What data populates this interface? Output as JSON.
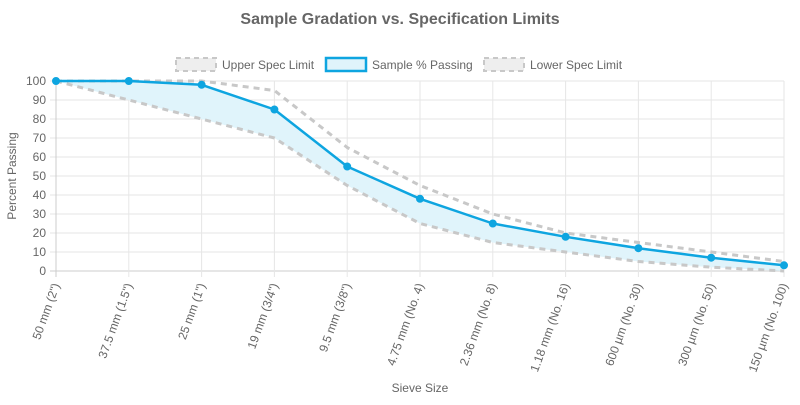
{
  "chart_data": {
    "type": "line",
    "title": "Sample Gradation vs. Specification Limits",
    "xlabel": "Sieve Size",
    "ylabel": "Percent Passing",
    "ylim": [
      0,
      100
    ],
    "yticks": [
      0,
      10,
      20,
      30,
      40,
      50,
      60,
      70,
      80,
      90,
      100
    ],
    "grid": true,
    "legend_position": "top",
    "categories": [
      "50 mm (2\")",
      "37.5 mm (1.5\")",
      "25 mm (1\")",
      "19 mm (3/4\")",
      "9.5 mm (3/8\")",
      "4.75 mm (No. 4)",
      "2.36 mm (No. 8)",
      "1.18 mm (No. 16)",
      "600 µm (No. 30)",
      "300 µm (No. 50)",
      "150 µm (No. 100)"
    ],
    "series": [
      {
        "name": "Upper Spec Limit",
        "style": "dashed",
        "color": "#c8c8c8",
        "values": [
          100,
          100,
          100,
          95,
          65,
          45,
          30,
          20,
          15,
          10,
          5
        ]
      },
      {
        "name": "Sample % Passing",
        "style": "solid",
        "color": "#0ea5e0",
        "fill": "#e0f4fb",
        "values": [
          100,
          100,
          98,
          85,
          55,
          38,
          25,
          18,
          12,
          7,
          3
        ]
      },
      {
        "name": "Lower Spec Limit",
        "style": "dashed",
        "color": "#c8c8c8",
        "values": [
          100,
          90,
          80,
          70,
          45,
          25,
          15,
          10,
          5,
          2,
          0
        ]
      }
    ]
  }
}
